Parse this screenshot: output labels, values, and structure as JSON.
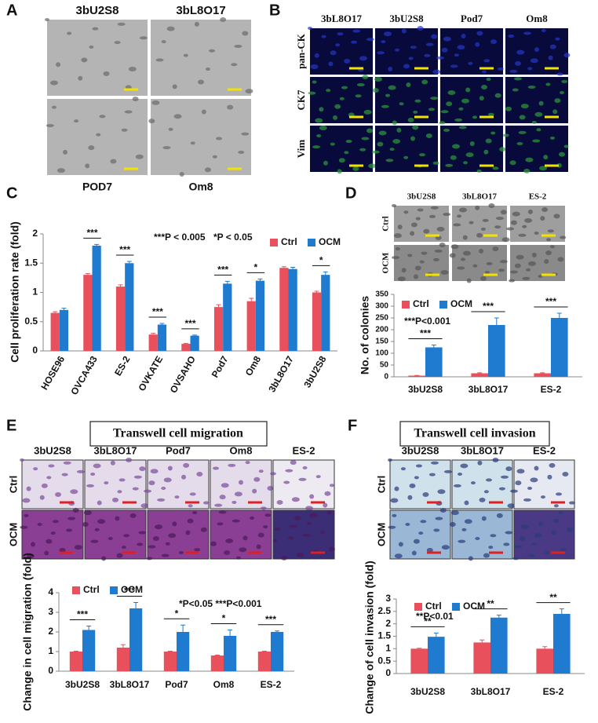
{
  "panels": {
    "A": {
      "letter": "A",
      "column_labels": [
        "3bU2S8",
        "3bL8O17"
      ],
      "bottom_labels": [
        "POD7",
        "Om8"
      ]
    },
    "B": {
      "letter": "B",
      "column_labels": [
        "3bL8O17",
        "3bU2S8",
        "Pod7",
        "Om8"
      ],
      "row_labels": [
        "pan-CK",
        "CK7",
        "Vim"
      ]
    },
    "C": {
      "letter": "C"
    },
    "D": {
      "letter": "D",
      "column_labels": [
        "3bU2S8",
        "3bL8O17",
        "ES-2"
      ],
      "row_labels": [
        "Ctrl",
        "OCM"
      ]
    },
    "E": {
      "letter": "E",
      "title": "Transwell cell migration",
      "column_labels": [
        "3bU2S8",
        "3bL8O17",
        "Pod7",
        "Om8",
        "ES-2"
      ],
      "row_labels": [
        "Ctrl",
        "OCM"
      ]
    },
    "F": {
      "letter": "F",
      "title": "Transwell cell invasion",
      "column_labels": [
        "3bU2S8",
        "3bL8O17",
        "ES-2"
      ],
      "row_labels": [
        "Ctrl",
        "OCM"
      ]
    }
  },
  "chart_data": [
    {
      "type": "bar",
      "y_label": "Cell proliferation rate (fold)",
      "categories": [
        "HOSE96",
        "OVCA433",
        "ES-2",
        "OVKATE",
        "OVSAHO",
        "Pod7",
        "Om8",
        "3bL8O17",
        "3bU2S8"
      ],
      "series": [
        {
          "name": "Ctrl",
          "color": "#e8505b",
          "values": [
            0.65,
            1.3,
            1.1,
            0.28,
            0.12,
            0.75,
            0.85,
            1.42,
            1.0
          ],
          "errors": [
            0.02,
            0.02,
            0.03,
            0.02,
            0.01,
            0.04,
            0.05,
            0.02,
            0.02
          ]
        },
        {
          "name": "OCM",
          "color": "#1f7bd0",
          "values": [
            0.7,
            1.8,
            1.5,
            0.45,
            0.26,
            1.15,
            1.2,
            1.4,
            1.3
          ],
          "errors": [
            0.03,
            0.02,
            0.03,
            0.02,
            0.01,
            0.04,
            0.03,
            0.03,
            0.05
          ]
        }
      ],
      "significance": [
        null,
        "***",
        "***",
        "***",
        "***",
        "***",
        "*",
        null,
        "*"
      ],
      "annotations": [
        "***P < 0.005",
        "*P < 0.05"
      ],
      "ylim": [
        0,
        2
      ],
      "yticks": [
        0,
        0.5,
        1,
        1.5,
        2
      ]
    },
    {
      "type": "bar",
      "y_label": "No. of colonies",
      "categories": [
        "3bU2S8",
        "3bL8O17",
        "ES-2"
      ],
      "series": [
        {
          "name": "Ctrl",
          "color": "#e8505b",
          "values": [
            5,
            15,
            15
          ],
          "errors": [
            1,
            2,
            2
          ]
        },
        {
          "name": "OCM",
          "color": "#1f7bd0",
          "values": [
            125,
            220,
            250
          ],
          "errors": [
            10,
            30,
            20
          ]
        }
      ],
      "significance": [
        "***",
        "***",
        "***"
      ],
      "annotations": [
        "***P<0.001"
      ],
      "ylim": [
        0,
        350
      ],
      "yticks": [
        0,
        50,
        100,
        150,
        200,
        250,
        300,
        350
      ]
    },
    {
      "type": "bar",
      "y_label": "Change in cell migration (fold)",
      "categories": [
        "3bU2S8",
        "3bL8O17",
        "Pod7",
        "Om8",
        "ES-2"
      ],
      "series": [
        {
          "name": "Ctrl",
          "color": "#e8505b",
          "values": [
            1,
            1.2,
            1,
            0.8,
            1
          ],
          "errors": [
            0.02,
            0.15,
            0.02,
            0.02,
            0.02
          ]
        },
        {
          "name": "OCM",
          "color": "#1f7bd0",
          "values": [
            2.1,
            3.2,
            2.0,
            1.8,
            2.0
          ],
          "errors": [
            0.2,
            0.3,
            0.35,
            0.3,
            0.05
          ]
        }
      ],
      "significance": [
        "***",
        "***",
        "*",
        "*",
        "***"
      ],
      "annotations": [
        "*P<0.05  ***P<0.001"
      ],
      "ylim": [
        0,
        4
      ],
      "yticks": [
        0,
        1,
        2,
        3,
        4
      ]
    },
    {
      "type": "bar",
      "y_label": "Change of cell invasion (fold)",
      "categories": [
        "3bU2S8",
        "3bL8O17",
        "ES-2"
      ],
      "series": [
        {
          "name": "Ctrl",
          "color": "#e8505b",
          "values": [
            1,
            1.25,
            1
          ],
          "errors": [
            0.02,
            0.1,
            0.08
          ]
        },
        {
          "name": "OCM",
          "color": "#1f7bd0",
          "values": [
            1.48,
            2.25,
            2.4
          ],
          "errors": [
            0.15,
            0.1,
            0.2
          ]
        }
      ],
      "significance": [
        "**",
        "**",
        "**"
      ],
      "annotations": [
        "**P<0.01"
      ],
      "ylim": [
        0,
        3
      ],
      "yticks": [
        0,
        0.5,
        1,
        1.5,
        2,
        2.5,
        3
      ]
    }
  ]
}
